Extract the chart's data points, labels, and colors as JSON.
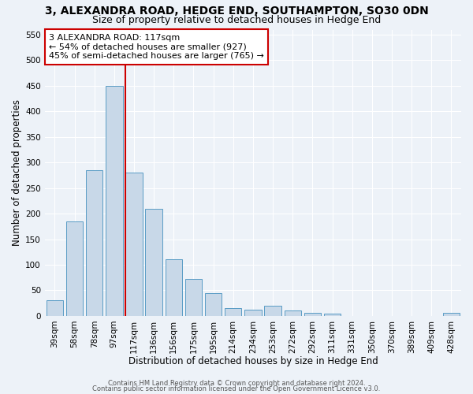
{
  "title1": "3, ALEXANDRA ROAD, HEDGE END, SOUTHAMPTON, SO30 0DN",
  "title2": "Size of property relative to detached houses in Hedge End",
  "xlabel": "Distribution of detached houses by size in Hedge End",
  "ylabel": "Number of detached properties",
  "categories": [
    "39sqm",
    "58sqm",
    "78sqm",
    "97sqm",
    "117sqm",
    "136sqm",
    "156sqm",
    "175sqm",
    "195sqm",
    "214sqm",
    "234sqm",
    "253sqm",
    "272sqm",
    "292sqm",
    "311sqm",
    "331sqm",
    "350sqm",
    "370sqm",
    "389sqm",
    "409sqm",
    "428sqm"
  ],
  "values": [
    30,
    185,
    285,
    450,
    280,
    210,
    110,
    72,
    45,
    15,
    12,
    20,
    10,
    6,
    5,
    0,
    0,
    0,
    0,
    0,
    6
  ],
  "bar_color": "#c8d8e8",
  "bar_edge_color": "#5a9cc5",
  "red_line_index": 4,
  "annotation_line1": "3 ALEXANDRA ROAD: 117sqm",
  "annotation_line2": "← 54% of detached houses are smaller (927)",
  "annotation_line3": "45% of semi-detached houses are larger (765) →",
  "annotation_box_color": "#ffffff",
  "annotation_box_edge": "#cc0000",
  "ylim": [
    0,
    560
  ],
  "yticks": [
    0,
    50,
    100,
    150,
    200,
    250,
    300,
    350,
    400,
    450,
    500,
    550
  ],
  "footer1": "Contains HM Land Registry data © Crown copyright and database right 2024.",
  "footer2": "Contains public sector information licensed under the Open Government Licence v3.0.",
  "bg_color": "#edf2f8",
  "grid_color": "#ffffff",
  "title1_fontsize": 10,
  "title2_fontsize": 9,
  "xlabel_fontsize": 8.5,
  "ylabel_fontsize": 8.5,
  "tick_fontsize": 7.5,
  "annotation_fontsize": 8,
  "footer_fontsize": 6
}
